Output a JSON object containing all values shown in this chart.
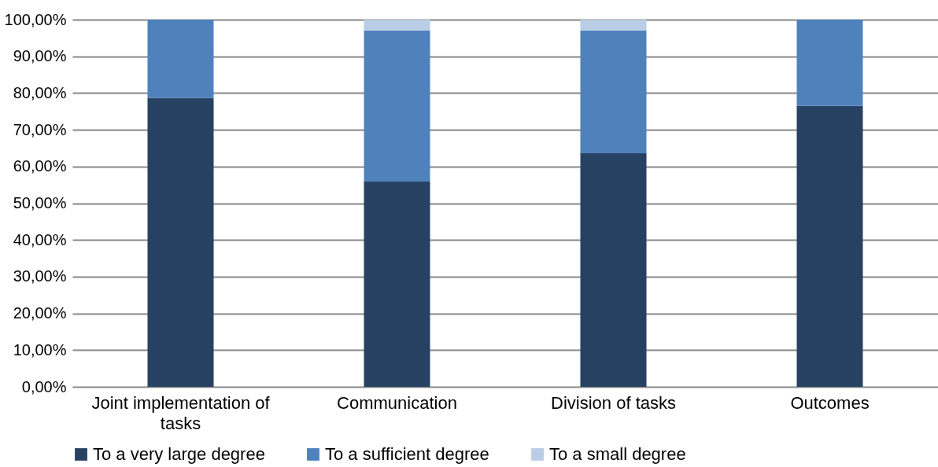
{
  "chart_data": {
    "type": "bar",
    "stacked": true,
    "categories": [
      "Joint implementation of tasks",
      "Communication",
      "Division of tasks",
      "Outcomes"
    ],
    "series": [
      {
        "name": "To a very large degree",
        "color": "#264161",
        "values": [
          78.7,
          55.9,
          63.6,
          76.5
        ]
      },
      {
        "name": "To a sufficient degree",
        "color": "#4f81bd",
        "values": [
          21.3,
          41.1,
          33.4,
          23.5
        ]
      },
      {
        "name": "To a small degree",
        "color": "#b9cde5",
        "values": [
          null,
          3.0,
          3.0,
          null
        ]
      }
    ],
    "ylim": [
      0,
      100
    ],
    "yticks": [
      {
        "value": 0,
        "label": "0,00%"
      },
      {
        "value": 10,
        "label": "10,00%"
      },
      {
        "value": 20,
        "label": "20,00%"
      },
      {
        "value": 30,
        "label": "30,00%"
      },
      {
        "value": 40,
        "label": "40,00%"
      },
      {
        "value": 50,
        "label": "50,00%"
      },
      {
        "value": 60,
        "label": "60,00%"
      },
      {
        "value": 70,
        "label": "70,00%"
      },
      {
        "value": 80,
        "label": "80,00%"
      },
      {
        "value": 90,
        "label": "90,00%"
      },
      {
        "value": 100,
        "label": "100,00%"
      }
    ],
    "grid": "y",
    "legend": "bottom"
  }
}
